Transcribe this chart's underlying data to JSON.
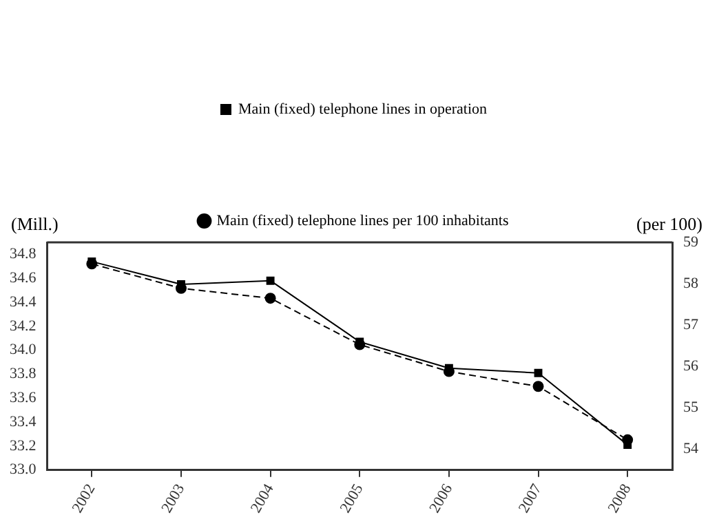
{
  "chart_data": {
    "type": "line",
    "ylabel": "(Mill.)",
    "y2label": "(per 100)",
    "legend": "top",
    "grid": false,
    "categories": [
      "2002",
      "2003",
      "2004",
      "2005",
      "2006",
      "2007",
      "2008"
    ],
    "series": [
      {
        "name": "Main (fixed) telephone lines in operation",
        "color": "#000000",
        "marker": "square",
        "line_style": "solid",
        "values": [
          34.74,
          34.55,
          34.58,
          34.07,
          33.85,
          33.81,
          33.21
        ]
      },
      {
        "name": "Main (fixed) telephone lines per 100 inhabitants",
        "color": "#000000",
        "marker": "circle",
        "line_style": "dashed",
        "axis": "y2",
        "values": [
          58.48,
          57.89,
          57.65,
          56.53,
          55.88,
          55.52,
          54.23
        ]
      }
    ],
    "ylim": [
      33,
      34.9
    ],
    "yticks": [
      {
        "value": 33,
        "label": "33.0"
      },
      33.2,
      33.4,
      33.6,
      33.8,
      {
        "value": 34,
        "label": "34.0"
      },
      34.2,
      34.4,
      34.6,
      34.8
    ],
    "y2lim": [
      53.5,
      59
    ],
    "y2ticks": [
      54,
      55,
      56,
      57,
      58,
      59
    ]
  }
}
